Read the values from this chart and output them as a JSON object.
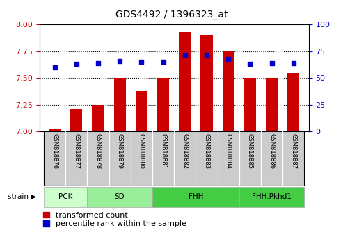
{
  "title": "GDS4492 / 1396323_at",
  "samples": [
    "GSM818876",
    "GSM818877",
    "GSM818878",
    "GSM818879",
    "GSM818880",
    "GSM818881",
    "GSM818882",
    "GSM818883",
    "GSM818884",
    "GSM818885",
    "GSM818886",
    "GSM818887"
  ],
  "bar_values": [
    7.02,
    7.21,
    7.25,
    7.5,
    7.38,
    7.5,
    7.93,
    7.9,
    7.75,
    7.5,
    7.5,
    7.55
  ],
  "dot_values": [
    60,
    63,
    64,
    66,
    65,
    65,
    72,
    72,
    68,
    63,
    64,
    64
  ],
  "ylim_left": [
    7.0,
    8.0
  ],
  "ylim_right": [
    0,
    100
  ],
  "yticks_left": [
    7.0,
    7.25,
    7.5,
    7.75,
    8.0
  ],
  "yticks_right": [
    0,
    25,
    50,
    75,
    100
  ],
  "bar_color": "#CC0000",
  "dot_color": "#0000CC",
  "bar_base": 7.0,
  "groups": [
    {
      "label": "PCK",
      "start": 0,
      "end": 2,
      "color": "#ccffcc"
    },
    {
      "label": "SD",
      "start": 2,
      "end": 5,
      "color": "#99ee99"
    },
    {
      "label": "FHH",
      "start": 5,
      "end": 9,
      "color": "#44cc44"
    },
    {
      "label": "FHH.Pkhd1",
      "start": 9,
      "end": 12,
      "color": "#44cc44"
    }
  ],
  "legend_bar": "transformed count",
  "legend_dot": "percentile rank within the sample",
  "right_axis_color": "#0000CC",
  "left_axis_color": "#CC0000",
  "tick_label_bg": "#cccccc"
}
